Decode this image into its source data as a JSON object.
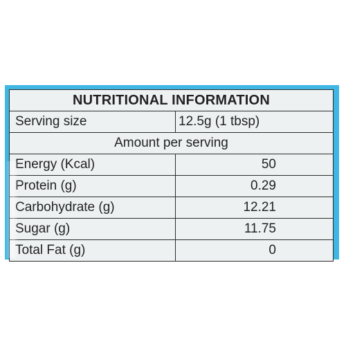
{
  "title": "NUTRITIONAL INFORMATION",
  "serving": {
    "label": "Serving size",
    "value": "12.5g (1 tbsp)"
  },
  "amount_header": "Amount per serving",
  "nutrients": [
    {
      "label": "Energy (Kcal)",
      "value": "50"
    },
    {
      "label": "Protein (g)",
      "value": "0.29"
    },
    {
      "label": "Carbohydrate (g)",
      "value": "12.21"
    },
    {
      "label": "Sugar (g)",
      "value": "11.75"
    },
    {
      "label": "Total Fat (g)",
      "value": "0"
    }
  ],
  "colors": {
    "frame": "#3fb6e3",
    "panel": "#eef1f2",
    "border": "#2a2a2a",
    "text": "#222222"
  }
}
